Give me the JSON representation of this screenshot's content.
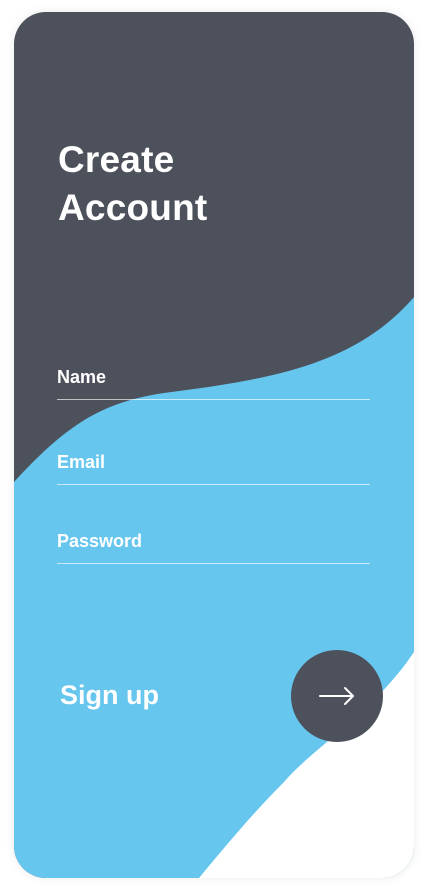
{
  "header": {
    "title_line1": "Create",
    "title_line2": "Account"
  },
  "form": {
    "name_label": "Name",
    "name_value": "",
    "email_label": "Email",
    "email_value": "",
    "password_label": "Password",
    "password_value": ""
  },
  "footer": {
    "signup_label": "Sign up",
    "submit_icon": "arrow-right-icon"
  },
  "colors": {
    "dark": "#4d515c",
    "accent": "#66c6ee",
    "white": "#ffffff"
  }
}
